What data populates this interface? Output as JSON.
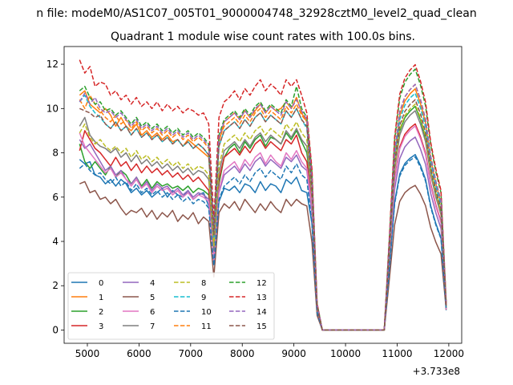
{
  "suptitle": "n file: modeM0/AS1C07_005T01_9000004748_32928cztM0_level2_quad_clean",
  "chart_data": {
    "type": "line",
    "title": "Quadrant 1 module wise count rates with 100.0s bins.",
    "xlabel": "",
    "ylabel": "",
    "x_offset_label": "+3.733e8",
    "xlim": [
      4550,
      12250
    ],
    "ylim": [
      -0.6,
      12.8
    ],
    "xticks": [
      5000,
      6000,
      7000,
      8000,
      9000,
      10000,
      11000,
      12000
    ],
    "yticks": [
      0,
      2,
      4,
      6,
      8,
      10,
      12
    ],
    "grid": false,
    "legend": {
      "placement": "lower-left",
      "columns": 4
    },
    "x": [
      4850,
      4950,
      5050,
      5150,
      5250,
      5350,
      5450,
      5550,
      5650,
      5750,
      5850,
      5950,
      6050,
      6150,
      6250,
      6350,
      6450,
      6550,
      6650,
      6750,
      6850,
      6950,
      7050,
      7150,
      7250,
      7350,
      7450,
      7550,
      7650,
      7750,
      7850,
      7950,
      8050,
      8150,
      8250,
      8350,
      8450,
      8550,
      8650,
      8750,
      8850,
      8950,
      9050,
      9150,
      9250,
      9350,
      9450,
      9550,
      9650,
      9750,
      9850,
      9950,
      10050,
      10150,
      10250,
      10350,
      10450,
      10550,
      10650,
      10750,
      10850,
      10950,
      11050,
      11150,
      11250,
      11350,
      11450,
      11550,
      11650,
      11750,
      11850,
      11950
    ],
    "gap_template": [
      0.6,
      0.1,
      0,
      0,
      0,
      0,
      0,
      0,
      0,
      0,
      0,
      0,
      0,
      0,
      0,
      0.35,
      0.72,
      0.88,
      0.94,
      0.97,
      0.99,
      0.93,
      0.85,
      0.7,
      0.6,
      0.52,
      0.9,
      0.1
    ],
    "series": [
      {
        "name": "0",
        "color": "#1f77b4",
        "dash": false,
        "first": [
          7.7,
          7.5,
          7.6,
          7.0,
          6.9,
          6.6,
          6.8,
          6.5,
          6.8,
          6.6,
          6.2,
          6.4,
          6.1,
          6.3,
          6.0,
          6.2,
          6.4,
          6.0,
          6.3,
          6.1,
          6.0,
          6.3,
          5.9,
          6.1,
          6.2,
          5.6,
          3.4,
          5.8,
          6.4,
          6.3,
          6.5,
          6.2,
          6.6,
          6.5,
          6.2,
          6.7,
          6.3,
          6.6,
          6.5,
          6.2,
          6.8,
          6.6,
          6.9,
          6.3,
          6.2
        ],
        "peak": 8.0
      },
      {
        "name": "1",
        "color": "#ff7f0e",
        "dash": false,
        "first": [
          10.6,
          10.8,
          10.2,
          10.0,
          9.8,
          10.0,
          9.7,
          9.2,
          9.6,
          9.2,
          9.0,
          9.3,
          8.8,
          9.0,
          8.7,
          8.9,
          8.6,
          8.8,
          8.5,
          8.6,
          8.3,
          8.6,
          8.4,
          8.2,
          8.0,
          7.8,
          4.5,
          8.5,
          9.4,
          9.6,
          9.8,
          9.5,
          9.9,
          9.6,
          9.9,
          10.2,
          9.8,
          10.1,
          9.9,
          10.0,
          10.3,
          10.0,
          10.5,
          9.8,
          9.4
        ],
        "peak": 11.0
      },
      {
        "name": "2",
        "color": "#2ca02c",
        "dash": false,
        "first": [
          8.4,
          7.6,
          7.3,
          7.6,
          7.3,
          7.0,
          7.4,
          6.9,
          7.2,
          7.0,
          6.6,
          6.9,
          6.5,
          6.8,
          6.4,
          6.7,
          6.5,
          6.6,
          6.4,
          6.5,
          6.3,
          6.5,
          6.2,
          6.4,
          6.3,
          6.1,
          3.7,
          6.6,
          7.8,
          8.2,
          8.4,
          8.0,
          8.5,
          8.2,
          8.6,
          8.8,
          8.3,
          8.7,
          8.6,
          8.4,
          8.9,
          8.6,
          9.0,
          8.5,
          8.0
        ],
        "peak": 10.2
      },
      {
        "name": "3",
        "color": "#d62728",
        "dash": false,
        "first": [
          8.1,
          9.0,
          8.6,
          8.2,
          8.0,
          7.7,
          7.4,
          7.8,
          7.4,
          7.6,
          7.2,
          7.5,
          7.1,
          7.4,
          7.1,
          7.3,
          7.0,
          7.2,
          6.9,
          7.1,
          6.8,
          7.0,
          6.7,
          6.9,
          6.6,
          6.3,
          3.3,
          6.8,
          7.8,
          8.0,
          8.2,
          7.9,
          8.3,
          8.0,
          8.4,
          8.6,
          8.2,
          8.5,
          8.3,
          8.1,
          8.6,
          8.4,
          8.8,
          8.0,
          7.6
        ],
        "peak": 9.4
      },
      {
        "name": "4",
        "color": "#9467bd",
        "dash": false,
        "first": [
          8.6,
          8.2,
          8.4,
          8.0,
          7.6,
          7.2,
          7.4,
          7.0,
          7.2,
          6.8,
          6.6,
          6.9,
          6.4,
          6.7,
          6.3,
          6.6,
          6.4,
          6.5,
          6.2,
          6.4,
          6.1,
          6.3,
          6.0,
          6.2,
          6.1,
          5.9,
          3.1,
          6.2,
          7.0,
          7.2,
          7.4,
          7.1,
          7.5,
          7.2,
          7.6,
          7.8,
          7.4,
          7.7,
          7.5,
          7.3,
          7.8,
          7.6,
          7.9,
          7.4,
          7.2
        ],
        "peak": 8.8
      },
      {
        "name": "5",
        "color": "#8c564b",
        "dash": false,
        "first": [
          6.6,
          6.7,
          6.2,
          6.3,
          5.9,
          6.0,
          5.7,
          5.9,
          5.5,
          5.2,
          5.4,
          5.3,
          5.5,
          5.1,
          5.4,
          5.0,
          5.3,
          5.1,
          5.4,
          4.9,
          5.2,
          5.0,
          5.3,
          4.8,
          5.1,
          4.9,
          2.4,
          5.3,
          5.7,
          5.5,
          5.8,
          5.4,
          5.9,
          5.6,
          5.3,
          5.7,
          5.4,
          5.8,
          5.5,
          5.3,
          5.9,
          5.6,
          5.9,
          5.7,
          5.6
        ],
        "peak": 6.6
      },
      {
        "name": "6",
        "color": "#e377c2",
        "dash": false,
        "first": [
          8.9,
          8.3,
          8.0,
          7.7,
          7.4,
          7.1,
          7.3,
          6.9,
          7.1,
          6.8,
          6.5,
          6.8,
          6.4,
          6.6,
          6.2,
          6.5,
          6.3,
          6.4,
          6.1,
          6.3,
          6.0,
          6.2,
          5.9,
          6.1,
          6.0,
          5.8,
          3.2,
          6.3,
          7.2,
          7.4,
          7.6,
          7.2,
          7.7,
          7.4,
          7.8,
          8.0,
          7.5,
          7.9,
          7.6,
          7.4,
          8.0,
          7.7,
          8.1,
          7.6,
          7.3
        ],
        "peak": 9.3
      },
      {
        "name": "7",
        "color": "#7f7f7f",
        "dash": false,
        "first": [
          9.2,
          9.6,
          8.8,
          8.5,
          8.3,
          8.2,
          8.0,
          8.2,
          7.8,
          8.0,
          7.6,
          7.9,
          7.5,
          7.7,
          7.4,
          7.6,
          7.3,
          7.5,
          7.2,
          7.4,
          7.1,
          7.3,
          7.0,
          7.2,
          7.1,
          6.8,
          3.6,
          7.1,
          8.1,
          8.3,
          8.5,
          8.2,
          8.6,
          8.3,
          8.7,
          8.9,
          8.5,
          8.8,
          8.6,
          8.4,
          9.0,
          8.7,
          9.1,
          8.6,
          8.3
        ],
        "peak": 10.0
      },
      {
        "name": "8",
        "color": "#bcbd22",
        "dash": true,
        "first": [
          8.9,
          9.3,
          8.7,
          8.4,
          8.6,
          8.3,
          8.1,
          8.3,
          8.0,
          8.2,
          7.8,
          8.1,
          7.7,
          7.9,
          7.6,
          7.8,
          7.5,
          7.7,
          7.4,
          7.6,
          7.3,
          7.5,
          7.2,
          7.4,
          7.3,
          7.0,
          3.8,
          7.4,
          8.4,
          8.6,
          8.8,
          8.5,
          8.9,
          8.6,
          9.0,
          9.2,
          8.8,
          9.1,
          8.9,
          8.7,
          9.3,
          9.0,
          9.4,
          8.9,
          8.6
        ],
        "peak": 10.3
      },
      {
        "name": "9",
        "color": "#17becf",
        "dash": true,
        "first": [
          10.3,
          10.6,
          10.1,
          9.8,
          9.6,
          9.3,
          9.1,
          9.4,
          9.0,
          9.2,
          8.8,
          9.1,
          8.7,
          8.9,
          8.6,
          8.8,
          8.5,
          8.7,
          8.4,
          8.6,
          8.3,
          8.5,
          8.2,
          8.4,
          8.2,
          7.9,
          4.2,
          8.3,
          9.0,
          9.2,
          9.4,
          9.1,
          9.5,
          9.2,
          9.6,
          9.8,
          9.4,
          9.7,
          9.5,
          9.3,
          9.9,
          9.6,
          10.0,
          9.5,
          9.1
        ],
        "peak": 10.8
      },
      {
        "name": "10",
        "color": "#1f77b4",
        "dash": true,
        "first": [
          7.3,
          7.5,
          7.2,
          7.0,
          7.1,
          6.8,
          6.6,
          6.9,
          6.5,
          6.7,
          6.3,
          6.6,
          6.2,
          6.4,
          6.1,
          6.3,
          6.0,
          6.2,
          5.9,
          6.1,
          5.8,
          6.0,
          5.7,
          5.9,
          5.8,
          5.5,
          2.9,
          5.9,
          6.5,
          6.7,
          6.9,
          6.6,
          7.0,
          6.7,
          7.1,
          7.3,
          6.9,
          7.2,
          7.0,
          6.8,
          7.4,
          7.1,
          7.5,
          7.0,
          6.8
        ],
        "peak": 7.9
      },
      {
        "name": "11",
        "color": "#ff7f0e",
        "dash": true,
        "first": [
          10.4,
          10.0,
          10.6,
          10.2,
          9.9,
          9.6,
          9.4,
          9.7,
          9.3,
          9.5,
          9.1,
          9.4,
          9.0,
          9.2,
          8.9,
          9.1,
          8.8,
          9.0,
          8.7,
          8.9,
          8.6,
          8.8,
          8.5,
          8.7,
          8.5,
          8.2,
          4.4,
          8.6,
          9.2,
          9.4,
          9.6,
          9.3,
          9.7,
          9.4,
          9.8,
          10.0,
          9.6,
          9.9,
          9.7,
          9.5,
          10.1,
          9.8,
          10.2,
          9.7,
          9.4
        ],
        "peak": 11.2
      },
      {
        "name": "12",
        "color": "#2ca02c",
        "dash": true,
        "first": [
          10.8,
          11.0,
          10.5,
          10.2,
          10.3,
          9.9,
          10.0,
          9.7,
          9.9,
          9.6,
          9.3,
          9.6,
          9.2,
          9.4,
          9.1,
          9.3,
          9.0,
          9.2,
          8.9,
          9.1,
          8.8,
          9.0,
          8.7,
          8.9,
          8.7,
          8.4,
          4.6,
          8.8,
          9.5,
          9.7,
          9.9,
          9.6,
          10.0,
          9.7,
          10.1,
          10.3,
          9.9,
          10.2,
          10.0,
          9.8,
          10.4,
          10.1,
          11.0,
          10.0,
          9.6
        ],
        "peak": 11.9
      },
      {
        "name": "13",
        "color": "#d62728",
        "dash": true,
        "first": [
          12.2,
          11.6,
          11.9,
          11.0,
          11.2,
          11.1,
          10.6,
          10.8,
          10.4,
          10.6,
          10.2,
          10.5,
          10.1,
          10.3,
          10.0,
          10.3,
          9.9,
          10.2,
          9.9,
          10.1,
          9.8,
          10.0,
          9.9,
          9.7,
          9.8,
          9.3,
          5.0,
          9.6,
          10.3,
          10.5,
          10.8,
          10.4,
          10.9,
          10.6,
          11.0,
          11.3,
          10.8,
          11.1,
          10.9,
          10.6,
          11.3,
          11.0,
          11.3,
          10.6,
          9.8
        ],
        "peak": 12.1
      },
      {
        "name": "14",
        "color": "#9467bd",
        "dash": true,
        "first": [
          10.3,
          10.7,
          10.2,
          10.5,
          10.0,
          9.8,
          9.9,
          9.6,
          9.8,
          9.5,
          9.2,
          9.5,
          9.1,
          9.3,
          9.0,
          9.2,
          8.9,
          9.1,
          8.8,
          9.0,
          8.7,
          8.9,
          8.6,
          8.8,
          8.6,
          8.3,
          4.5,
          8.7,
          9.4,
          9.6,
          9.8,
          9.5,
          9.9,
          9.6,
          10.0,
          10.2,
          9.8,
          10.1,
          9.9,
          9.7,
          10.3,
          10.0,
          10.4,
          9.9,
          9.5
        ],
        "peak": 11.2
      },
      {
        "name": "15",
        "color": "#8c564b",
        "dash": true,
        "first": [
          10.0,
          9.9,
          9.8,
          9.6,
          9.7,
          9.3,
          9.1,
          9.4,
          9.0,
          9.2,
          8.8,
          9.1,
          8.7,
          8.9,
          8.6,
          8.8,
          8.5,
          8.7,
          8.4,
          8.6,
          8.3,
          8.5,
          8.2,
          8.4,
          8.2,
          7.9,
          4.3,
          8.3,
          9.0,
          9.2,
          9.4,
          9.1,
          9.5,
          9.2,
          9.6,
          9.8,
          9.4,
          9.7,
          9.5,
          9.3,
          9.9,
          9.6,
          10.0,
          9.5,
          9.2
        ],
        "peak": 10.5
      }
    ]
  }
}
